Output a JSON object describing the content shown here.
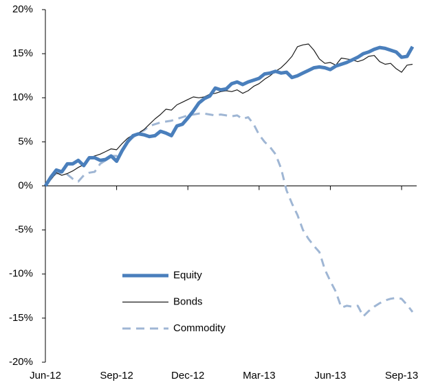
{
  "chart_data": {
    "type": "line",
    "categories": [
      "Jun-12",
      null,
      null,
      null,
      null,
      null,
      null,
      null,
      null,
      null,
      null,
      null,
      null,
      "Sep-12",
      null,
      null,
      null,
      null,
      null,
      null,
      null,
      null,
      null,
      null,
      null,
      null,
      "Dec-12",
      null,
      null,
      null,
      null,
      null,
      null,
      null,
      null,
      null,
      null,
      null,
      null,
      "Mar-13",
      null,
      null,
      null,
      null,
      null,
      null,
      null,
      null,
      null,
      null,
      null,
      null,
      "Jun-13",
      null,
      null,
      null,
      null,
      null,
      null,
      null,
      null,
      null,
      null,
      null,
      null,
      "Sep-13",
      null,
      null
    ],
    "series": [
      {
        "name": "Equity",
        "color": "#4a7fbc",
        "values": [
          0,
          1,
          1.8,
          1.6,
          2.5,
          2.5,
          2.9,
          2.3,
          3.2,
          3.2,
          2.9,
          3.0,
          3.4,
          2.8,
          4.0,
          5.0,
          5.7,
          5.9,
          5.8,
          5.6,
          5.7,
          6.2,
          6.0,
          5.7,
          6.8,
          7.0,
          7.7,
          8.5,
          9.4,
          9.9,
          10.2,
          11.1,
          10.9,
          11.0,
          11.6,
          11.8,
          11.5,
          11.8,
          12.0,
          12.2,
          12.7,
          12.8,
          13.0,
          12.8,
          12.9,
          12.3,
          12.5,
          12.8,
          13.1,
          13.4,
          13.5,
          13.4,
          13.2,
          13.6,
          13.8,
          14.0,
          14.3,
          14.6,
          15.0,
          15.2,
          15.5,
          15.7,
          15.6,
          15.4,
          15.2,
          14.6,
          14.7,
          15.8
        ]
      },
      {
        "name": "Bonds",
        "color": "#1a1a1a",
        "values": [
          0,
          0.7,
          1.5,
          1.2,
          1.4,
          1.7,
          2.1,
          2.4,
          3.2,
          3.4,
          3.6,
          3.9,
          4.2,
          4.1,
          4.8,
          5.4,
          5.8,
          6.0,
          6.4,
          7.0,
          7.6,
          8.1,
          8.7,
          8.6,
          9.2,
          9.5,
          9.8,
          10.1,
          10.0,
          10.1,
          10.4,
          10.5,
          10.7,
          10.8,
          10.7,
          10.9,
          10.5,
          10.8,
          11.3,
          11.6,
          12.1,
          12.5,
          13.0,
          13.4,
          14.0,
          14.7,
          15.8,
          16.0,
          16.1,
          15.4,
          14.4,
          13.9,
          14.0,
          13.7,
          14.5,
          14.4,
          14.3,
          14.1,
          14.3,
          14.7,
          14.8,
          14.1,
          13.8,
          13.9,
          13.3,
          12.9,
          13.7,
          13.8
        ]
      },
      {
        "name": "Commodity",
        "color": "#9fb6d4",
        "values": [
          0,
          1.0,
          1.4,
          1.5,
          1.3,
          0.8,
          0.5,
          1.2,
          1.5,
          1.6,
          2.5,
          2.9,
          3.4,
          3.4,
          4.0,
          5.0,
          5.5,
          6.0,
          6.3,
          6.8,
          7.0,
          7.2,
          7.3,
          7.4,
          7.6,
          7.8,
          8.0,
          8.1,
          8.2,
          8.2,
          8.1,
          8.0,
          8.1,
          8.0,
          7.9,
          8.0,
          7.6,
          7.8,
          7.0,
          5.8,
          5.0,
          4.4,
          3.6,
          2.0,
          -0.5,
          -2.0,
          -3.3,
          -5.0,
          -6.0,
          -6.8,
          -7.5,
          -9.5,
          -10.8,
          -12.0,
          -13.8,
          -13.6,
          -13.7,
          -13.6,
          -14.8,
          -14.2,
          -13.7,
          -13.3,
          -13.0,
          -12.8,
          -12.7,
          -12.8,
          -13.5,
          -14.3
        ]
      }
    ],
    "ylim": [
      -20,
      20
    ],
    "yticks": [
      {
        "value": -20,
        "label": "-20%"
      },
      {
        "value": -15,
        "label": "-15%"
      },
      {
        "value": -10,
        "label": "-10%"
      },
      {
        "value": -5,
        "label": "-5%"
      },
      {
        "value": 0,
        "label": "0%"
      },
      {
        "value": 5,
        "label": "5%"
      },
      {
        "value": 10,
        "label": "10%"
      },
      {
        "value": 15,
        "label": "15%"
      },
      {
        "value": 20,
        "label": "20%"
      }
    ]
  }
}
